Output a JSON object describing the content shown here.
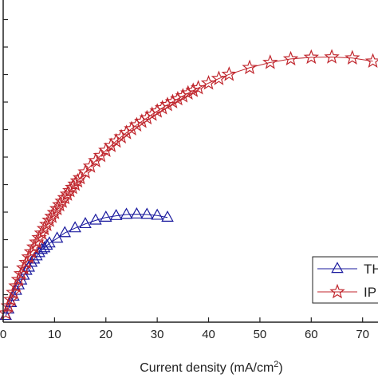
{
  "chart_data": {
    "type": "scatter",
    "xlabel": "Current density (mA/cm",
    "xlabel_sup": "2",
    "xlabel_close": ")",
    "ylabel": "",
    "title": "",
    "xlim": [
      0,
      73
    ],
    "ylim": [
      0,
      1
    ],
    "x_ticks": [
      0,
      10,
      20,
      30,
      40,
      50,
      60,
      70
    ],
    "x_tick_labels": [
      "0",
      "10",
      "20",
      "30",
      "40",
      "50",
      "60",
      "70"
    ],
    "grid": false,
    "legend": {
      "position": "bottom-right",
      "entries": [
        "TH",
        "IP"
      ]
    },
    "series": [
      {
        "name": "TH",
        "color": "#1a1a9e",
        "marker": "triangle-open",
        "x": [
          0.5,
          1.0,
          1.5,
          2.0,
          2.5,
          3.0,
          3.5,
          4.0,
          4.5,
          5.0,
          5.5,
          6.0,
          6.5,
          7.0,
          7.5,
          8.0,
          8.5,
          9.0,
          10.5,
          12.0,
          14.0,
          16.0,
          18.0,
          20.0,
          22.0,
          24.0,
          26.0,
          28.0,
          30.0,
          32.0
        ],
        "y": [
          0.02,
          0.04,
          0.06,
          0.08,
          0.098,
          0.115,
          0.13,
          0.145,
          0.16,
          0.17,
          0.185,
          0.195,
          0.205,
          0.215,
          0.225,
          0.23,
          0.238,
          0.245,
          0.26,
          0.277,
          0.292,
          0.305,
          0.316,
          0.325,
          0.33,
          0.334,
          0.335,
          0.334,
          0.331,
          0.325
        ]
      },
      {
        "name": "IP",
        "color": "#c0262d",
        "marker": "star-open",
        "x": [
          0.5,
          1.0,
          1.5,
          2.0,
          2.5,
          3.0,
          3.5,
          4.0,
          4.5,
          5.0,
          5.5,
          6.0,
          6.5,
          7.0,
          7.5,
          8.0,
          8.5,
          9.0,
          9.5,
          10.0,
          10.5,
          11.0,
          11.5,
          12.0,
          12.5,
          13.0,
          13.5,
          14.0,
          14.5,
          15.0,
          16.0,
          17.0,
          18.0,
          19.0,
          20.0,
          21.0,
          22.0,
          23.0,
          24.0,
          25.0,
          26.0,
          27.0,
          28.0,
          29.0,
          30.0,
          31.0,
          32.0,
          33.0,
          34.0,
          35.0,
          36.0,
          37.0,
          38.0,
          40.0,
          42.0,
          44.0,
          48.0,
          52.0,
          56.0,
          60.0,
          64.0,
          68.0,
          72.0
        ],
        "y": [
          0.028,
          0.05,
          0.07,
          0.092,
          0.112,
          0.132,
          0.15,
          0.168,
          0.185,
          0.202,
          0.218,
          0.233,
          0.248,
          0.262,
          0.276,
          0.29,
          0.303,
          0.316,
          0.328,
          0.34,
          0.352,
          0.364,
          0.375,
          0.386,
          0.397,
          0.408,
          0.418,
          0.428,
          0.438,
          0.448,
          0.466,
          0.484,
          0.501,
          0.517,
          0.533,
          0.548,
          0.562,
          0.575,
          0.588,
          0.6,
          0.612,
          0.623,
          0.634,
          0.645,
          0.655,
          0.665,
          0.675,
          0.684,
          0.693,
          0.702,
          0.711,
          0.719,
          0.727,
          0.742,
          0.756,
          0.769,
          0.79,
          0.806,
          0.817,
          0.822,
          0.823,
          0.82,
          0.81
        ]
      }
    ]
  }
}
